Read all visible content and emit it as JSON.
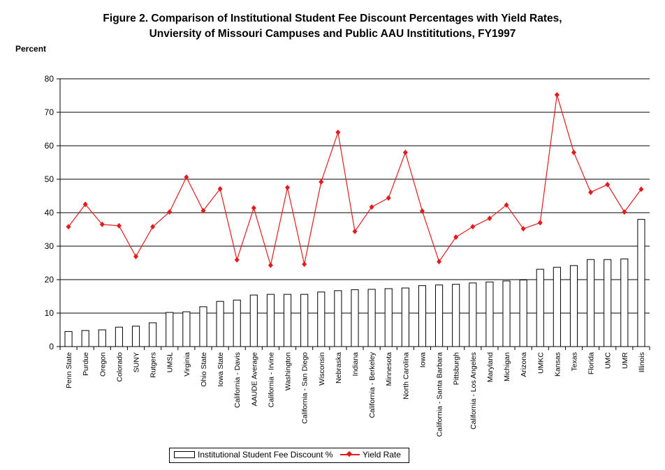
{
  "chart_data": {
    "type": "bar+line",
    "title_line1": "Figure 2. Comparison of Institutional Student Fee Discount Percentages with Yield Rates,",
    "title_line2": "Unviersity of Missouri Campuses and Public AAU Instititutions, FY1997",
    "ylabel": "Percent",
    "ylim": [
      0,
      80
    ],
    "yticks": [
      0,
      10,
      20,
      30,
      40,
      50,
      60,
      70,
      80
    ],
    "grid": true,
    "legend_position": "bottom",
    "categories": [
      "Penn State",
      "Purdue",
      "Oregon",
      "Colorado",
      "SUNY",
      "Rutgers",
      "UMSL",
      "Virginia",
      "Ohio State",
      "Iowa State",
      "California - Davis",
      "AAUDE Average",
      "California - Irvine",
      "Washington",
      "California - San Diego",
      "Wisconsin",
      "Nebraska",
      "Indiana",
      "California - Berkeley",
      "Minnesota",
      "North Carolina",
      "Iowa",
      "California - Santa Barbara",
      "Pittsburgh",
      "California - Los Angeles",
      "Maryland",
      "Michigan",
      "Arizona",
      "UMKC",
      "Kansas",
      "Texas",
      "Florida",
      "UMC",
      "UMR",
      "Illinois"
    ],
    "series": [
      {
        "name": "Institutional Student Fee Discount %",
        "kind": "bar",
        "color": "#ffffff",
        "values": [
          4.5,
          4.8,
          5.0,
          5.8,
          6.1,
          7.1,
          10.2,
          10.4,
          11.9,
          13.5,
          13.9,
          15.4,
          15.6,
          15.6,
          15.6,
          16.3,
          16.7,
          17.0,
          17.1,
          17.3,
          17.5,
          18.2,
          18.4,
          18.6,
          19.0,
          19.3,
          19.6,
          19.9,
          23.1,
          23.7,
          24.2,
          26.0,
          26.0,
          26.2,
          38.0
        ]
      },
      {
        "name": "Yield Rate",
        "kind": "line",
        "color": "#e41a1c",
        "values": [
          35.8,
          42.5,
          36.5,
          36.1,
          26.9,
          35.8,
          40.2,
          50.6,
          40.6,
          47.1,
          25.9,
          41.4,
          24.3,
          47.5,
          24.6,
          49.2,
          64.0,
          34.4,
          41.7,
          44.4,
          58.0,
          40.5,
          25.4,
          32.7,
          35.8,
          38.3,
          42.3,
          35.2,
          37.0,
          75.2,
          58.0,
          46.1,
          48.4,
          40.2,
          47.0
        ]
      }
    ]
  }
}
